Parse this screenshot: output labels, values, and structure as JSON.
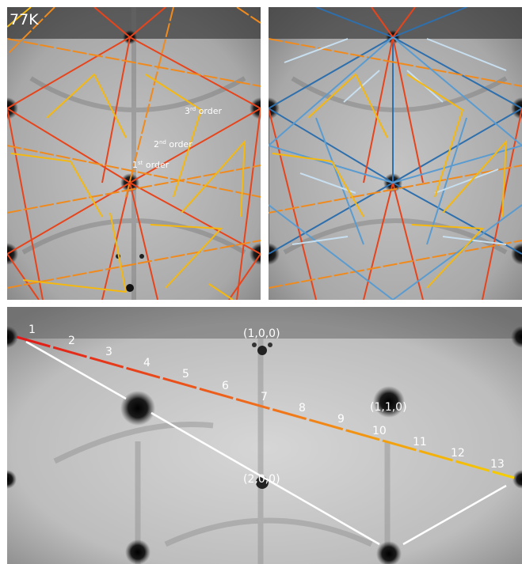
{
  "top_left_panel": {
    "temperature_label": "77K",
    "order_labels": [
      {
        "base": "1",
        "sup": "st",
        "rest": " order"
      },
      {
        "base": "2",
        "sup": "nd",
        "rest": " order"
      },
      {
        "base": "3",
        "sup": "rd",
        "rest": " order"
      }
    ]
  },
  "bottom_panel": {
    "peak_numbers": [
      "1",
      "2",
      "3",
      "4",
      "5",
      "6",
      "7",
      "8",
      "9",
      "10",
      "11",
      "12",
      "13"
    ],
    "reflections": [
      "(1,0,0)",
      "(1,1,0)",
      "(2,0,0)"
    ]
  },
  "colors": {
    "first_order": "#e8441c",
    "second_order": "#f08a1c",
    "third_order": "#f5b80f",
    "blue_dark": "#2e6fad",
    "blue_mid": "#5a9bd0",
    "blue_light": "#c8dff0",
    "gradient_start": "#e01818",
    "gradient_end": "#f5d000",
    "white_guide": "#ffffff"
  }
}
